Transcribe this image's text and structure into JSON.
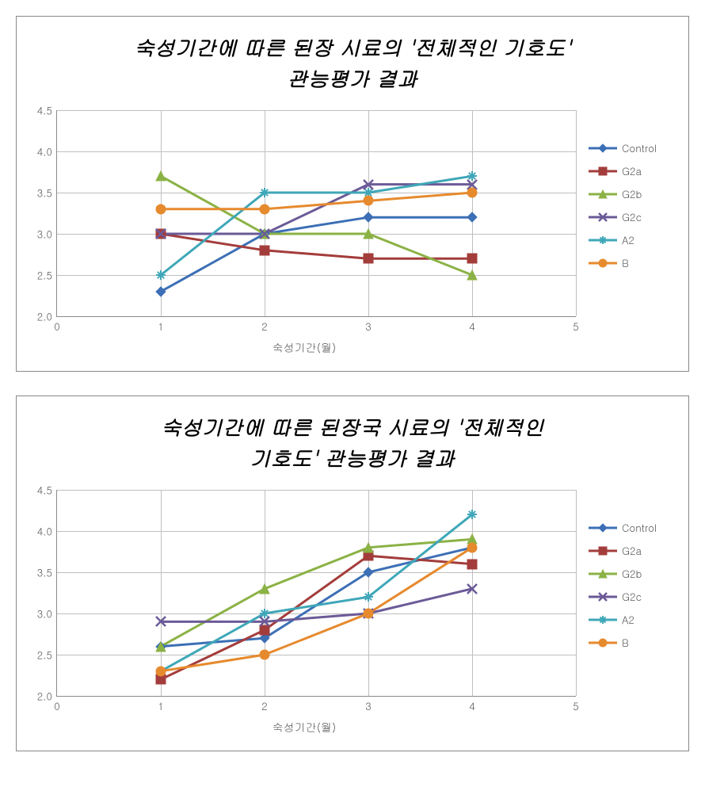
{
  "charts": [
    {
      "title": "숙성기간에 따른 된장 시료의 '전체적인 기호도'\n관능평가 결과",
      "xlabel": "숙성기간(월)",
      "xlim": [
        0,
        5
      ],
      "xtick_step": 1,
      "ylim": [
        2.0,
        4.5
      ],
      "ytick_step": 0.5,
      "ytick_decimals": 1,
      "background_color": "#ffffff",
      "grid_color": "#bfbfbf",
      "axis_color": "#8a8a8a",
      "title_fontsize": 26,
      "label_fontsize": 14,
      "tick_fontsize": 13,
      "line_width": 3,
      "marker_size": 6,
      "series": [
        {
          "name": "Control",
          "color": "#3c6fb5",
          "marker": "diamond",
          "x": [
            1,
            2,
            3,
            4
          ],
          "y": [
            2.3,
            3.0,
            3.2,
            3.2
          ]
        },
        {
          "name": "G2a",
          "color": "#a33d3b",
          "marker": "square",
          "x": [
            1,
            2,
            3,
            4
          ],
          "y": [
            3.0,
            2.8,
            2.7,
            2.7
          ]
        },
        {
          "name": "G2b",
          "color": "#8bb245",
          "marker": "triangle",
          "x": [
            1,
            2,
            3,
            4
          ],
          "y": [
            3.7,
            3.0,
            3.0,
            2.5
          ]
        },
        {
          "name": "G2c",
          "color": "#6b5a97",
          "marker": "x",
          "x": [
            1,
            2,
            3,
            4
          ],
          "y": [
            3.0,
            3.0,
            3.6,
            3.6
          ]
        },
        {
          "name": "A2",
          "color": "#3fa7b8",
          "marker": "star",
          "x": [
            1,
            2,
            3,
            4
          ],
          "y": [
            2.5,
            3.5,
            3.5,
            3.7
          ]
        },
        {
          "name": "B",
          "color": "#e68a2e",
          "marker": "circle",
          "x": [
            1,
            2,
            3,
            4
          ],
          "y": [
            3.3,
            3.3,
            3.4,
            3.5
          ]
        }
      ]
    },
    {
      "title": "숙성기간에 따른 된장국 시료의 '전체적인\n기호도' 관능평가 결과",
      "xlabel": "숙성기간(월)",
      "xlim": [
        0,
        5
      ],
      "xtick_step": 1,
      "ylim": [
        2.0,
        4.5
      ],
      "ytick_step": 0.5,
      "ytick_decimals": 1,
      "background_color": "#ffffff",
      "grid_color": "#bfbfbf",
      "axis_color": "#8a8a8a",
      "title_fontsize": 26,
      "label_fontsize": 14,
      "tick_fontsize": 13,
      "line_width": 3,
      "marker_size": 6,
      "series": [
        {
          "name": "Control",
          "color": "#3c6fb5",
          "marker": "diamond",
          "x": [
            1,
            2,
            3,
            4
          ],
          "y": [
            2.6,
            2.7,
            3.5,
            3.8
          ]
        },
        {
          "name": "G2a",
          "color": "#a33d3b",
          "marker": "square",
          "x": [
            1,
            2,
            3,
            4
          ],
          "y": [
            2.2,
            2.8,
            3.7,
            3.6
          ]
        },
        {
          "name": "G2b",
          "color": "#8bb245",
          "marker": "triangle",
          "x": [
            1,
            2,
            3,
            4
          ],
          "y": [
            2.6,
            3.3,
            3.8,
            3.9
          ]
        },
        {
          "name": "G2c",
          "color": "#6b5a97",
          "marker": "x",
          "x": [
            1,
            2,
            3,
            4
          ],
          "y": [
            2.9,
            2.9,
            3.0,
            3.3
          ]
        },
        {
          "name": "A2",
          "color": "#3fa7b8",
          "marker": "star",
          "x": [
            1,
            2,
            3,
            4
          ],
          "y": [
            2.3,
            3.0,
            3.2,
            4.2
          ]
        },
        {
          "name": "B",
          "color": "#e68a2e",
          "marker": "circle",
          "x": [
            1,
            2,
            3,
            4
          ],
          "y": [
            2.3,
            2.5,
            3.0,
            3.8
          ]
        }
      ]
    }
  ]
}
